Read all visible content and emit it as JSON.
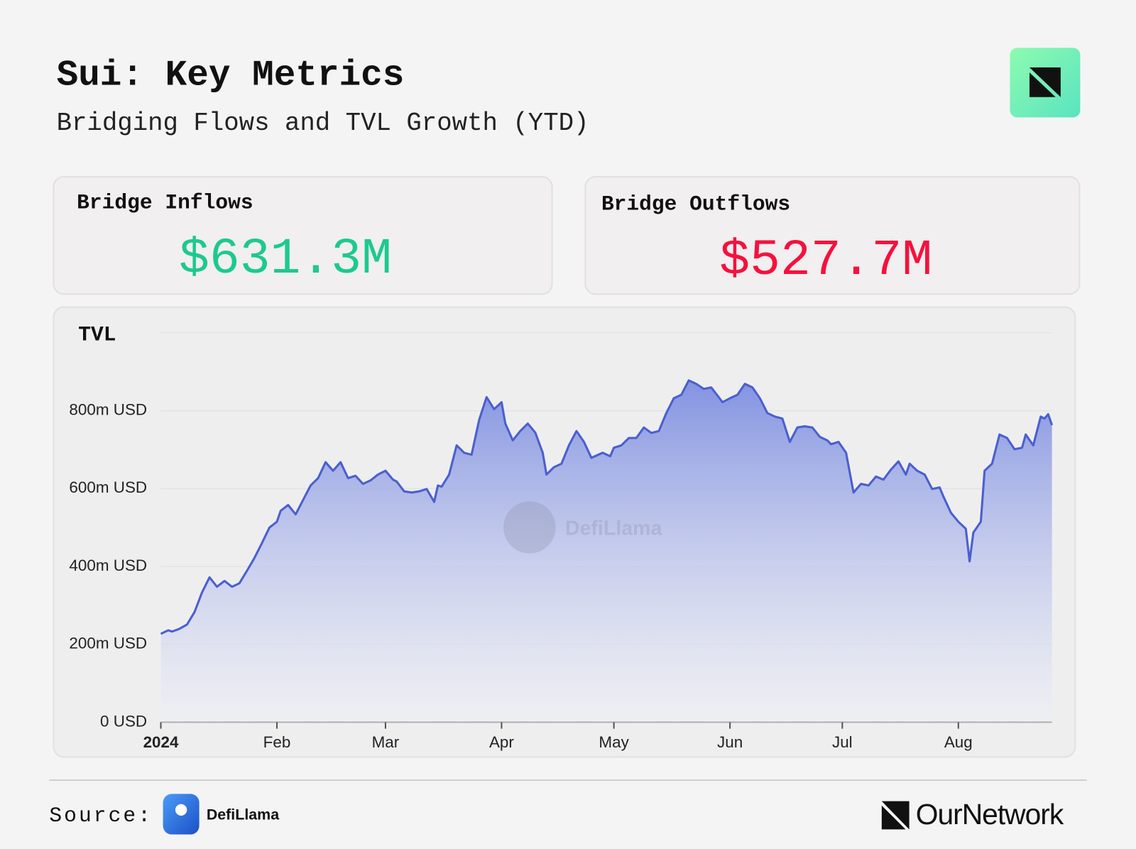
{
  "title": "Sui: Key Metrics",
  "subtitle": "Bridging Flows and TVL Growth (YTD)",
  "cards": [
    {
      "label": "Bridge Inflows",
      "value": "$631.3M",
      "color": "#1dc98f"
    },
    {
      "label": "Bridge Outflows",
      "value": "$527.7M",
      "color": "#f5113d"
    }
  ],
  "chart_data": {
    "type": "area",
    "title": "TVL",
    "color": "#4a5fd0",
    "x": [
      0,
      2,
      3,
      5,
      7,
      9,
      11,
      13,
      15,
      17,
      19,
      21,
      23,
      25,
      27,
      29,
      31,
      32,
      34,
      36,
      38,
      40,
      42,
      44,
      46,
      48,
      50,
      52,
      54,
      56,
      58,
      60,
      62,
      63,
      65,
      67,
      69,
      71,
      73,
      74,
      75,
      77,
      79,
      81,
      83,
      85,
      87,
      89,
      91,
      92,
      94,
      96,
      98,
      100,
      102,
      103,
      105,
      107,
      109,
      111,
      113,
      115,
      118,
      120,
      121,
      123,
      125,
      127,
      129,
      131,
      133,
      135,
      137,
      139,
      141,
      143,
      145,
      147,
      149,
      150,
      152,
      154,
      156,
      158,
      160,
      162,
      164,
      166,
      168,
      170,
      172,
      174,
      176,
      178,
      179,
      181,
      183,
      185,
      187,
      189,
      191,
      193,
      195,
      197,
      199,
      200,
      202,
      204,
      206,
      208,
      209,
      211,
      213,
      215,
      216,
      217,
      219,
      220,
      222,
      224,
      226,
      228,
      230,
      231,
      233,
      235,
      236,
      237,
      238
    ],
    "values": [
      227,
      236,
      233,
      240,
      251,
      283,
      333,
      372,
      348,
      363,
      348,
      357,
      389,
      422,
      460,
      500,
      515,
      543,
      558,
      534,
      571,
      608,
      627,
      668,
      646,
      668,
      627,
      633,
      612,
      621,
      636,
      646,
      623,
      618,
      593,
      590,
      593,
      599,
      566,
      608,
      605,
      636,
      711,
      692,
      687,
      776,
      835,
      804,
      822,
      767,
      724,
      748,
      767,
      744,
      692,
      636,
      655,
      664,
      711,
      748,
      720,
      679,
      692,
      683,
      705,
      711,
      730,
      730,
      757,
      743,
      748,
      794,
      832,
      841,
      878,
      869,
      856,
      860,
      835,
      822,
      832,
      841,
      869,
      860,
      832,
      794,
      785,
      780,
      720,
      757,
      760,
      757,
      733,
      724,
      714,
      720,
      692,
      590,
      612,
      608,
      631,
      623,
      649,
      670,
      636,
      664,
      646,
      636,
      599,
      603,
      580,
      538,
      515,
      497,
      413,
      487,
      515,
      646,
      664,
      739,
      730,
      701,
      705,
      739,
      711,
      785,
      780,
      791,
      763
    ],
    "xlim": [
      0,
      238
    ],
    "xticks": [
      {
        "value": 0,
        "label": "2024"
      },
      {
        "value": 31,
        "label": "Feb"
      },
      {
        "value": 60,
        "label": "Mar"
      },
      {
        "value": 91,
        "label": "Apr"
      },
      {
        "value": 121,
        "label": "May"
      },
      {
        "value": 152,
        "label": "Jun"
      },
      {
        "value": 182,
        "label": "Jul"
      },
      {
        "value": 213,
        "label": "Aug"
      }
    ],
    "ylim": [
      0,
      1000
    ],
    "yticks": [
      {
        "value": 0,
        "label": "0 USD"
      },
      {
        "value": 200,
        "label": "200m USD"
      },
      {
        "value": 400,
        "label": "400m USD"
      },
      {
        "value": 600,
        "label": "600m USD"
      },
      {
        "value": 800,
        "label": "800m USD"
      }
    ],
    "grid": true
  },
  "watermark": "DefiLlama",
  "source": {
    "label": "Source:",
    "name": "DefiLlama"
  },
  "brand": "OurNetwork"
}
